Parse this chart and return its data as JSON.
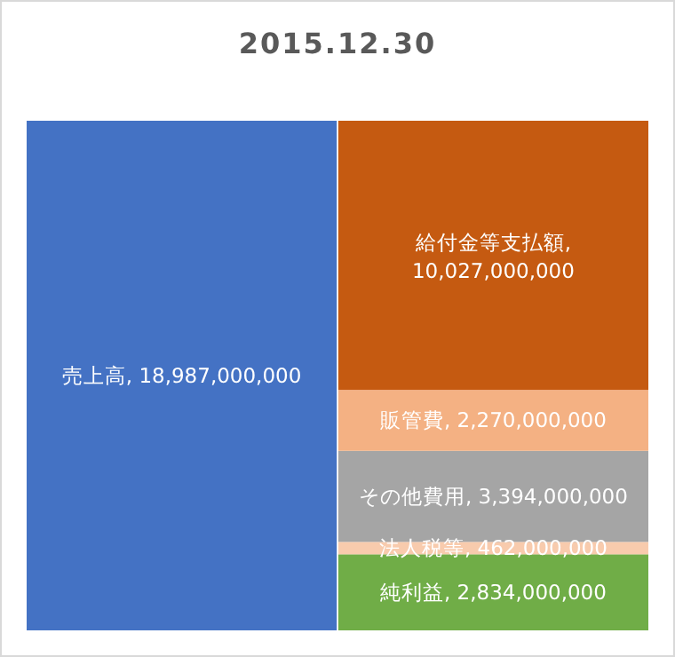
{
  "chart_data": {
    "type": "bar",
    "title": "2015.12.30",
    "stacked": true,
    "categories": [
      null,
      null
    ],
    "series": [
      {
        "name": "売上高,",
        "color": "#4472c4",
        "values": [
          18987000000,
          null
        ],
        "value_labels": [
          "18,987,000,000",
          null
        ]
      },
      {
        "name": "純利益,",
        "color": "#70ad47",
        "values": [
          null,
          2834000000
        ],
        "value_labels": [
          null,
          "2,834,000,000"
        ]
      },
      {
        "name": "法人税等,",
        "color": "#f8cbad",
        "values": [
          null,
          462000000
        ],
        "value_labels": [
          null,
          "462,000,000"
        ]
      },
      {
        "name": "その他費用,",
        "color": "#a5a5a5",
        "values": [
          null,
          3394000000
        ],
        "value_labels": [
          null,
          "3,394,000,000"
        ]
      },
      {
        "name": "販管費,",
        "color": "#f4b183",
        "values": [
          null,
          2270000000
        ],
        "value_labels": [
          null,
          "2,270,000,000"
        ]
      },
      {
        "name": "給付金等支払額,",
        "color": "#c55a11",
        "values": [
          null,
          10027000000
        ],
        "value_labels": [
          null,
          "10,027,000,000"
        ]
      }
    ]
  }
}
